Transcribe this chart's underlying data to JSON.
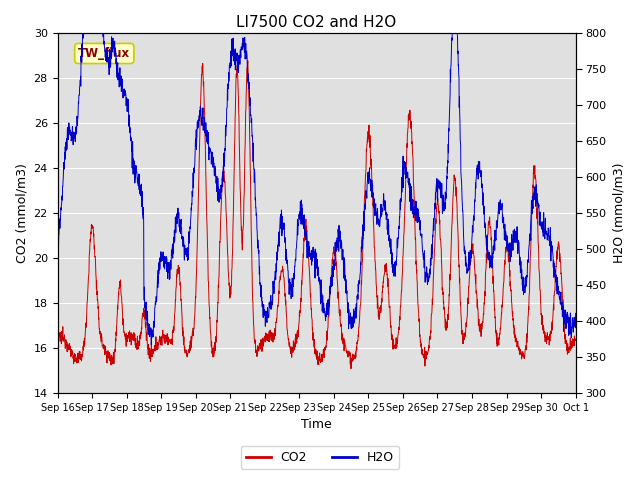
{
  "title": "LI7500 CO2 and H2O",
  "xlabel": "Time",
  "ylabel_left": "CO2 (mmol/m3)",
  "ylabel_right": "H2O (mmol/m3)",
  "co2_ylim": [
    14,
    30
  ],
  "h2o_ylim": [
    300,
    800
  ],
  "co2_yticks": [
    14,
    16,
    18,
    20,
    22,
    24,
    26,
    28,
    30
  ],
  "h2o_yticks": [
    300,
    350,
    400,
    450,
    500,
    550,
    600,
    650,
    700,
    750,
    800
  ],
  "xtick_labels": [
    "Sep 16",
    "Sep 17",
    "Sep 18",
    "Sep 19",
    "Sep 20",
    "Sep 21",
    "Sep 22",
    "Sep 23",
    "Sep 24",
    "Sep 25",
    "Sep 26",
    "Sep 27",
    "Sep 28",
    "Sep 29",
    "Sep 30",
    "Oct 1"
  ],
  "co2_color": "#cc0000",
  "h2o_color": "#0000cc",
  "background_color": "#e0e0e0",
  "outer_bg": "#ffffff",
  "title_fontsize": 11,
  "axis_fontsize": 9,
  "tick_fontsize": 8,
  "legend_label_co2": "CO2",
  "legend_label_h2o": "H2O",
  "annotation_text": "TW_flux",
  "annotation_bg": "#ffffcc",
  "annotation_border": "#cccc00",
  "figsize": [
    6.4,
    4.8
  ],
  "dpi": 100
}
